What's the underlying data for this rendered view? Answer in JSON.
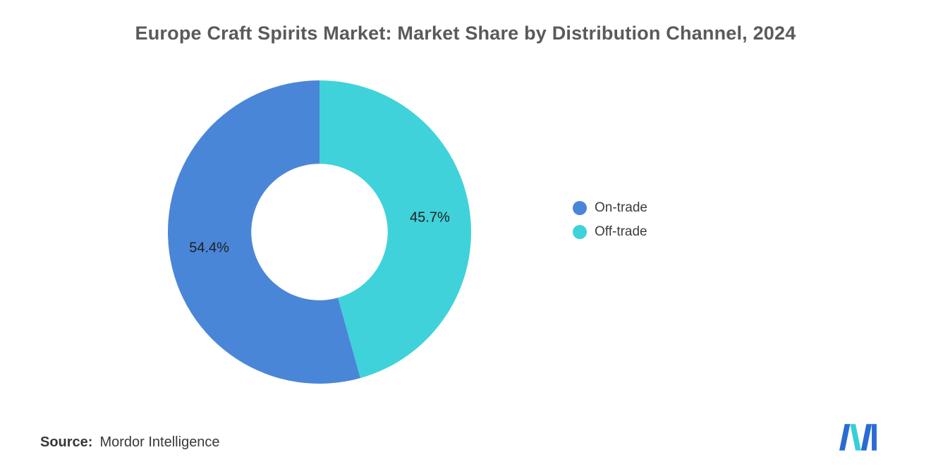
{
  "chart_data": {
    "type": "pie",
    "donut": true,
    "title": "Europe Craft Spirits Market: Market Share by Distribution Channel, 2024",
    "slices": [
      {
        "label": "On-trade",
        "value": 54.4,
        "display": "54.4%",
        "color": "#4a86d8"
      },
      {
        "label": "Off-trade",
        "value": 45.7,
        "display": "45.7%",
        "color": "#40d2da"
      }
    ],
    "draw_order": [
      1,
      0
    ],
    "start_angle_deg": 0,
    "inner_radius_ratio": 0.45,
    "legend_position": "right",
    "hole_color": "#ffffff"
  },
  "source": {
    "prefix": "Source:",
    "text": "Mordor Intelligence"
  },
  "logo": {
    "name": "mordor-intelligence-logo",
    "blue": "#2a6bd4",
    "teal": "#36cfdb"
  }
}
